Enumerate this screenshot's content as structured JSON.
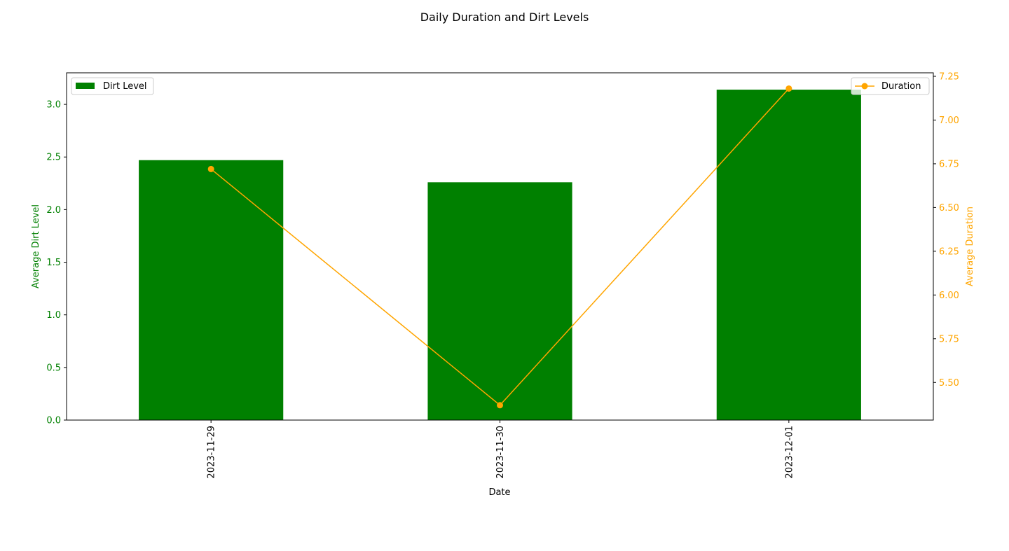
{
  "chart_data": {
    "type": "bar",
    "title": "Daily Duration and Dirt Levels",
    "xlabel": "Date",
    "categories": [
      "2023-11-29",
      "2023-11-30",
      "2023-12-01"
    ],
    "series": [
      {
        "name": "Dirt Level",
        "type": "bar",
        "axis": "left",
        "values": [
          2.47,
          2.26,
          3.14
        ],
        "color": "#008000"
      },
      {
        "name": "Duration",
        "type": "line",
        "axis": "right",
        "values": [
          6.72,
          5.37,
          7.18
        ],
        "color": "#ffa500",
        "marker": "circle"
      }
    ],
    "y_left": {
      "label": "Average Dirt Level",
      "range": [
        0,
        3.3
      ],
      "ticks": [
        "0.0",
        "0.5",
        "1.0",
        "1.5",
        "2.0",
        "2.5",
        "3.0"
      ],
      "color": "#008000"
    },
    "y_right": {
      "label": "Average Duration",
      "range": [
        5.285,
        7.27
      ],
      "ticks": [
        "5.50",
        "5.75",
        "6.00",
        "6.25",
        "6.50",
        "6.75",
        "7.00",
        "7.25"
      ],
      "color": "#ffa500"
    },
    "grid": false,
    "legends": [
      {
        "placement": "top-left",
        "entries": [
          "Dirt Level"
        ]
      },
      {
        "placement": "top-right",
        "entries": [
          "Duration"
        ]
      }
    ]
  }
}
